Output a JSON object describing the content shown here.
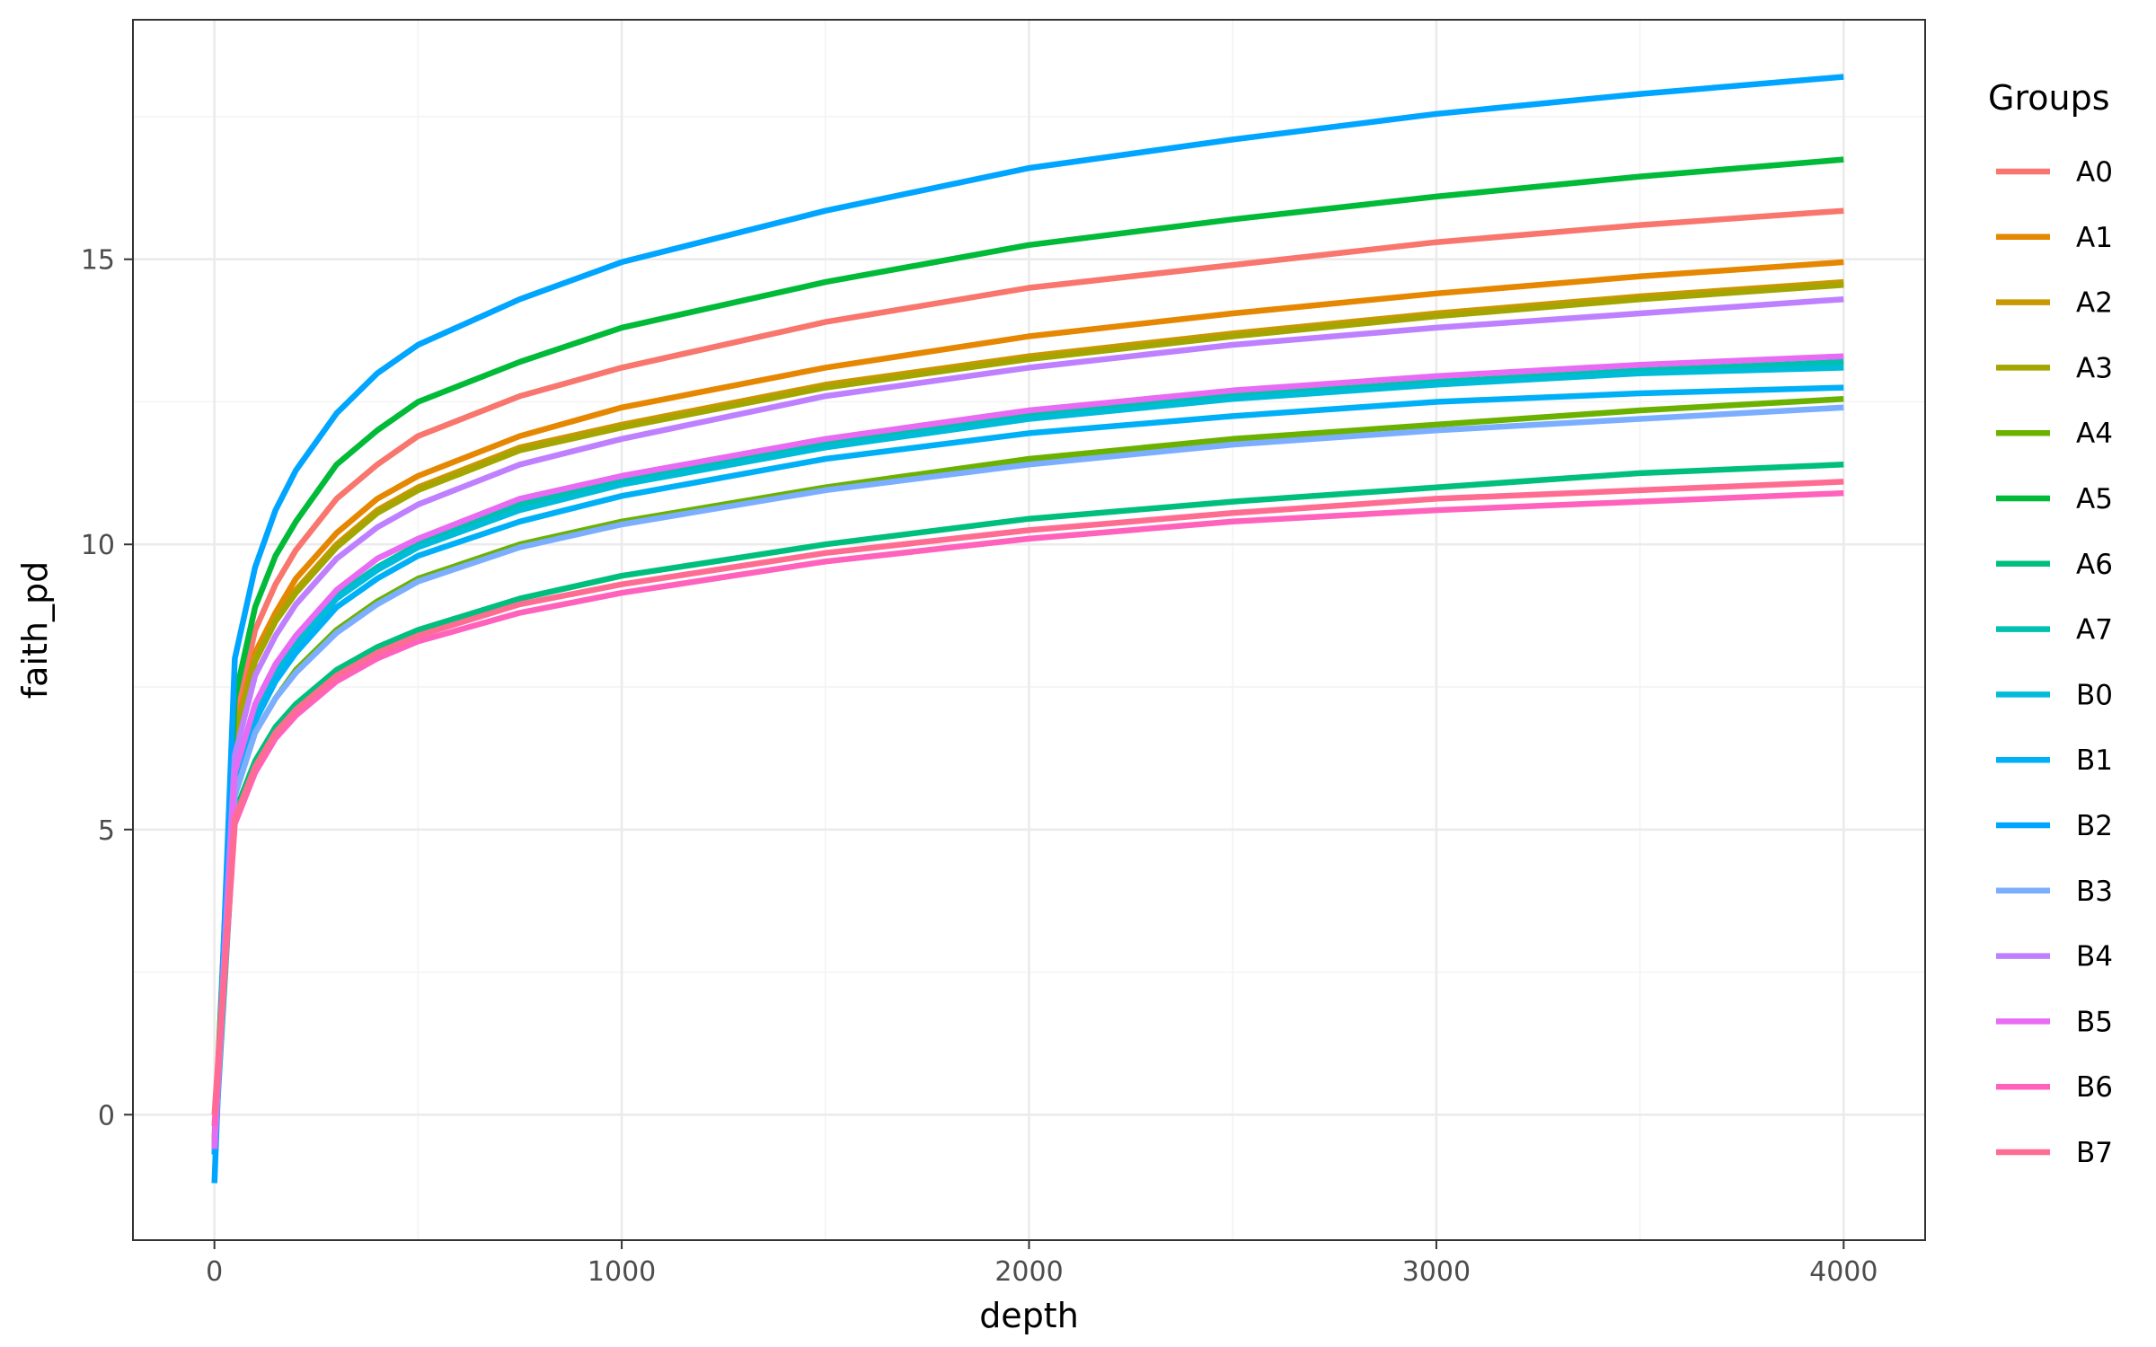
{
  "chart_data": {
    "type": "line",
    "title": "",
    "xlabel": "depth",
    "ylabel": "faith_pd",
    "xlim": [
      -200,
      4200
    ],
    "ylim": [
      -2.2,
      19.2
    ],
    "x_ticks": [
      0,
      1000,
      2000,
      3000,
      4000
    ],
    "x_tick_labels": [
      "0",
      "1000",
      "2000",
      "3000",
      "4000"
    ],
    "y_ticks": [
      0,
      5,
      10,
      15
    ],
    "y_tick_labels": [
      "0",
      "5",
      "10",
      "15"
    ],
    "grid": true,
    "legend": {
      "title": "Groups",
      "position": "right"
    },
    "x": [
      0,
      50,
      100,
      150,
      200,
      300,
      400,
      500,
      750,
      1000,
      1500,
      2000,
      2500,
      3000,
      3500,
      4000
    ],
    "series": [
      {
        "name": "A0",
        "color": "#F8766D",
        "values": [
          -0.4,
          6.9,
          8.5,
          9.3,
          9.9,
          10.8,
          11.4,
          11.9,
          12.6,
          13.1,
          13.9,
          14.5,
          14.9,
          15.3,
          15.6,
          15.85
        ]
      },
      {
        "name": "A1",
        "color": "#E58700",
        "values": [
          -0.5,
          6.7,
          8.1,
          8.8,
          9.4,
          10.2,
          10.8,
          11.2,
          11.9,
          12.4,
          13.1,
          13.65,
          14.05,
          14.4,
          14.7,
          14.95
        ]
      },
      {
        "name": "A2",
        "color": "#C99800",
        "values": [
          -0.5,
          6.6,
          8.0,
          8.7,
          9.2,
          10.0,
          10.6,
          11.0,
          11.7,
          12.1,
          12.8,
          13.3,
          13.7,
          14.05,
          14.35,
          14.6
        ]
      },
      {
        "name": "A3",
        "color": "#A3A500",
        "values": [
          -0.5,
          6.6,
          7.95,
          8.65,
          9.15,
          9.95,
          10.55,
          10.95,
          11.65,
          12.05,
          12.75,
          13.25,
          13.65,
          14.0,
          14.3,
          14.55
        ]
      },
      {
        "name": "A4",
        "color": "#6BB100",
        "values": [
          -0.6,
          5.6,
          6.7,
          7.3,
          7.8,
          8.5,
          9.0,
          9.4,
          10.0,
          10.4,
          11.0,
          11.5,
          11.85,
          12.1,
          12.35,
          12.55
        ]
      },
      {
        "name": "A5",
        "color": "#00BA38",
        "values": [
          -0.6,
          7.3,
          8.9,
          9.8,
          10.4,
          11.4,
          12.0,
          12.5,
          13.2,
          13.8,
          14.6,
          15.25,
          15.7,
          16.1,
          16.45,
          16.75
        ]
      },
      {
        "name": "A6",
        "color": "#00BF7D",
        "values": [
          -0.7,
          5.3,
          6.2,
          6.8,
          7.2,
          7.8,
          8.2,
          8.5,
          9.05,
          9.45,
          10.0,
          10.45,
          10.75,
          11.0,
          11.25,
          11.4
        ]
      },
      {
        "name": "A7",
        "color": "#00C0AF",
        "values": [
          -0.6,
          5.9,
          7.1,
          7.8,
          8.3,
          9.1,
          9.6,
          10.0,
          10.7,
          11.1,
          11.8,
          12.3,
          12.6,
          12.85,
          13.05,
          13.2
        ]
      },
      {
        "name": "B0",
        "color": "#00BCD8",
        "values": [
          -0.6,
          5.9,
          7.05,
          7.75,
          8.25,
          9.05,
          9.55,
          9.95,
          10.6,
          11.05,
          11.7,
          12.2,
          12.55,
          12.8,
          13.0,
          13.1
        ]
      },
      {
        "name": "B1",
        "color": "#00B0F6",
        "values": [
          -0.7,
          5.7,
          6.9,
          7.6,
          8.1,
          8.9,
          9.4,
          9.8,
          10.4,
          10.85,
          11.5,
          11.95,
          12.25,
          12.5,
          12.65,
          12.75
        ]
      },
      {
        "name": "B2",
        "color": "#00A5FF",
        "values": [
          -1.2,
          8.0,
          9.6,
          10.6,
          11.3,
          12.3,
          13.0,
          13.5,
          14.3,
          14.95,
          15.85,
          16.6,
          17.1,
          17.55,
          17.9,
          18.2
        ]
      },
      {
        "name": "B3",
        "color": "#7CAEFF",
        "values": [
          -0.6,
          5.6,
          6.7,
          7.3,
          7.75,
          8.45,
          8.95,
          9.35,
          9.95,
          10.35,
          10.95,
          11.4,
          11.75,
          12.0,
          12.2,
          12.4
        ]
      },
      {
        "name": "B4",
        "color": "#BF80FF",
        "values": [
          -0.5,
          6.3,
          7.7,
          8.4,
          8.95,
          9.75,
          10.3,
          10.7,
          11.4,
          11.85,
          12.6,
          13.1,
          13.5,
          13.8,
          14.05,
          14.3
        ]
      },
      {
        "name": "B5",
        "color": "#E76BF3",
        "values": [
          -0.6,
          6.0,
          7.2,
          7.9,
          8.4,
          9.2,
          9.75,
          10.1,
          10.8,
          11.2,
          11.85,
          12.35,
          12.7,
          12.95,
          13.15,
          13.3
        ]
      },
      {
        "name": "B6",
        "color": "#FF62BC",
        "values": [
          -0.2,
          5.1,
          6.0,
          6.6,
          7.0,
          7.6,
          8.0,
          8.3,
          8.8,
          9.15,
          9.7,
          10.1,
          10.4,
          10.6,
          10.75,
          10.9
        ]
      },
      {
        "name": "B7",
        "color": "#FF6C91",
        "values": [
          0.0,
          5.2,
          6.1,
          6.7,
          7.1,
          7.7,
          8.1,
          8.4,
          8.95,
          9.3,
          9.85,
          10.25,
          10.55,
          10.8,
          10.95,
          11.1
        ]
      }
    ]
  }
}
